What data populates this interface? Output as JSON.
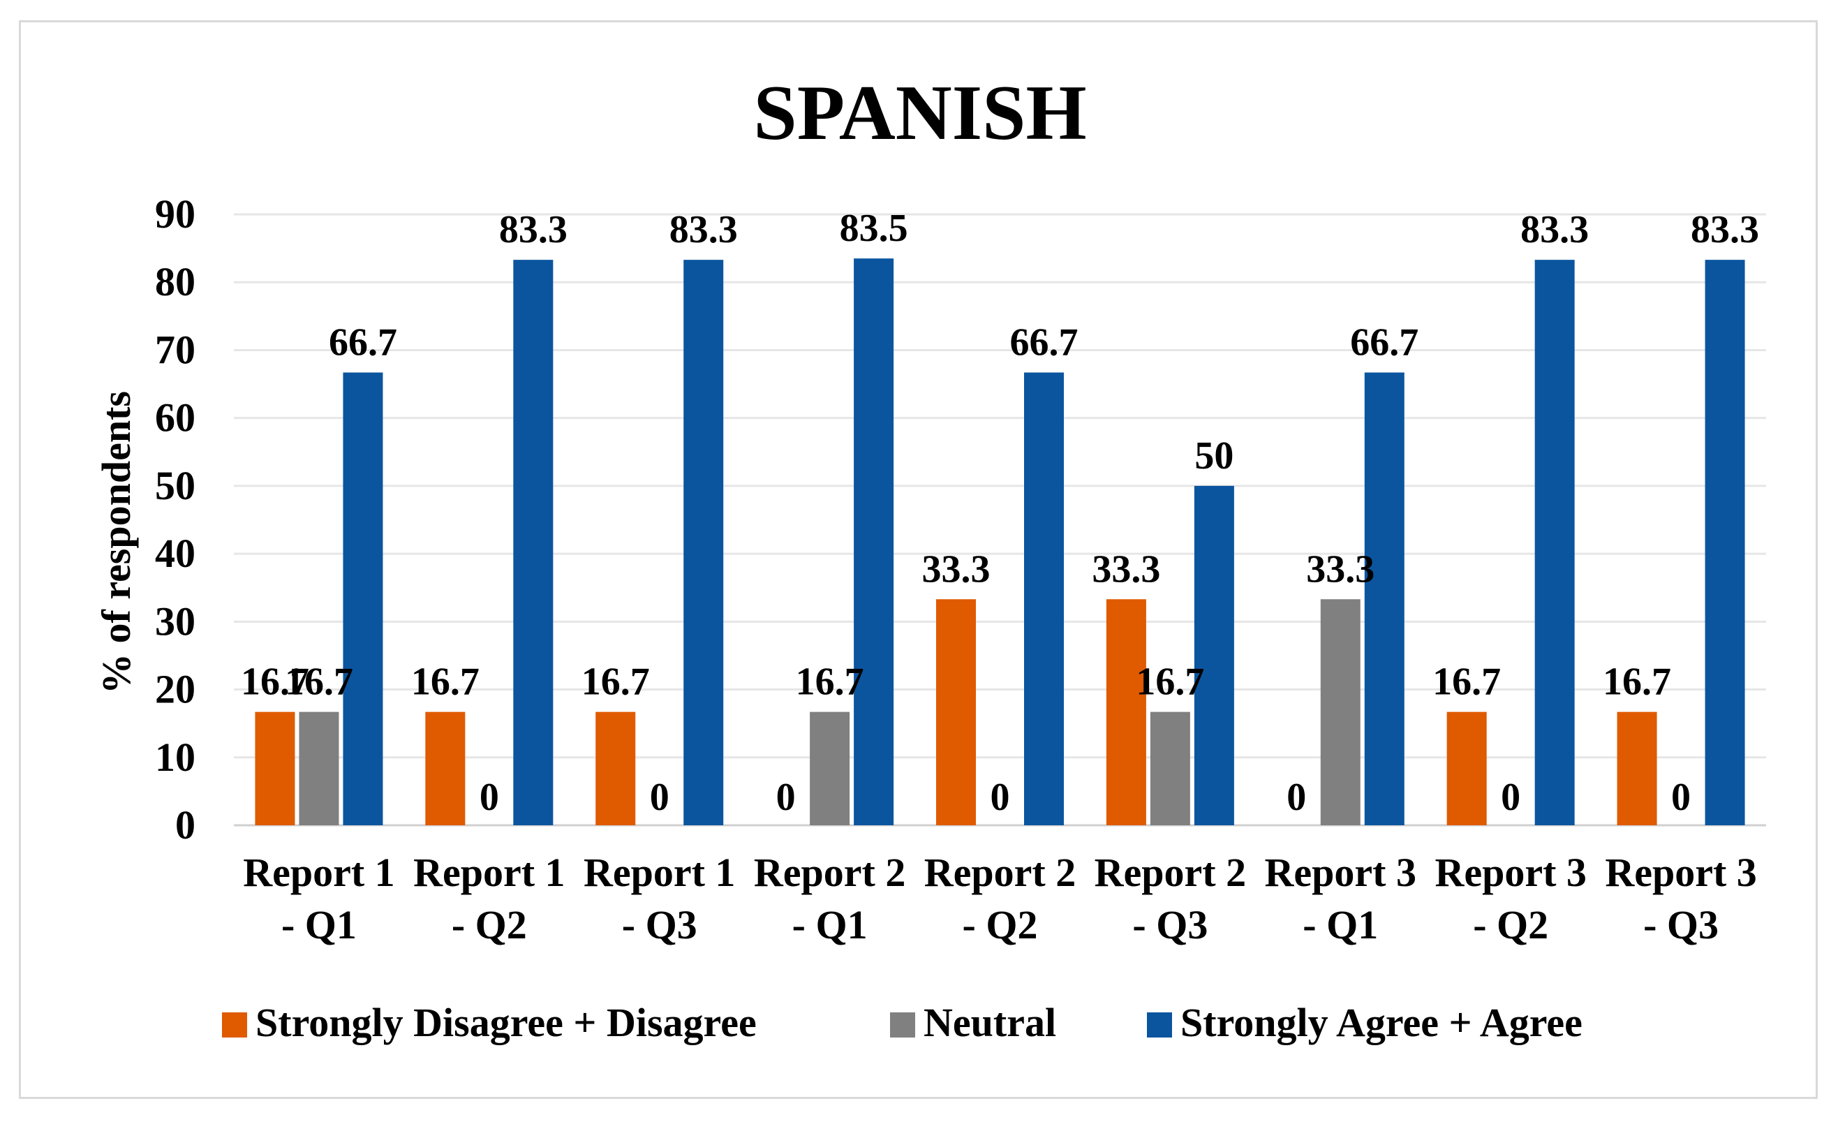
{
  "chart_data": {
    "type": "bar",
    "title": "SPANISH",
    "xlabel": "",
    "ylabel": "% of respondents",
    "ylim": [
      0,
      90
    ],
    "yticks": [
      0,
      10,
      20,
      30,
      40,
      50,
      60,
      70,
      80,
      90
    ],
    "grid": true,
    "legend_position": "bottom",
    "categories": [
      [
        "Report 1",
        "- Q1"
      ],
      [
        "Report 1",
        "- Q2"
      ],
      [
        "Report 1",
        "- Q3"
      ],
      [
        "Report 2",
        "- Q1"
      ],
      [
        "Report 2",
        "- Q2"
      ],
      [
        "Report 2",
        "- Q3"
      ],
      [
        "Report 3",
        "- Q1"
      ],
      [
        "Report 3",
        "- Q2"
      ],
      [
        "Report 3",
        "- Q3"
      ]
    ],
    "series": [
      {
        "name": "Strongly Disagree + Disagree",
        "color": "#e05a00",
        "values": [
          16.7,
          16.7,
          16.7,
          0,
          33.3,
          33.3,
          0,
          16.7,
          16.7
        ],
        "labels": [
          "16.7",
          "16.7",
          "16.7",
          "0",
          "33.3",
          "33.3",
          "0",
          "16.7",
          "16.7"
        ]
      },
      {
        "name": "Neutral",
        "color": "#808080",
        "values": [
          16.7,
          0,
          0,
          16.7,
          0,
          16.7,
          33.3,
          0,
          0
        ],
        "labels": [
          "16.7",
          "0",
          "0",
          "16.7",
          "0",
          "16.7",
          "33.3",
          "0",
          "0"
        ]
      },
      {
        "name": "Strongly Agree + Agree",
        "color": "#0b559f",
        "values": [
          66.7,
          83.3,
          83.3,
          83.5,
          66.7,
          50,
          66.7,
          83.3,
          83.3
        ],
        "labels": [
          "66.7",
          "83.3",
          "83.3",
          "83.5",
          "66.7",
          "50",
          "66.7",
          "83.3",
          "83.3"
        ]
      }
    ]
  }
}
